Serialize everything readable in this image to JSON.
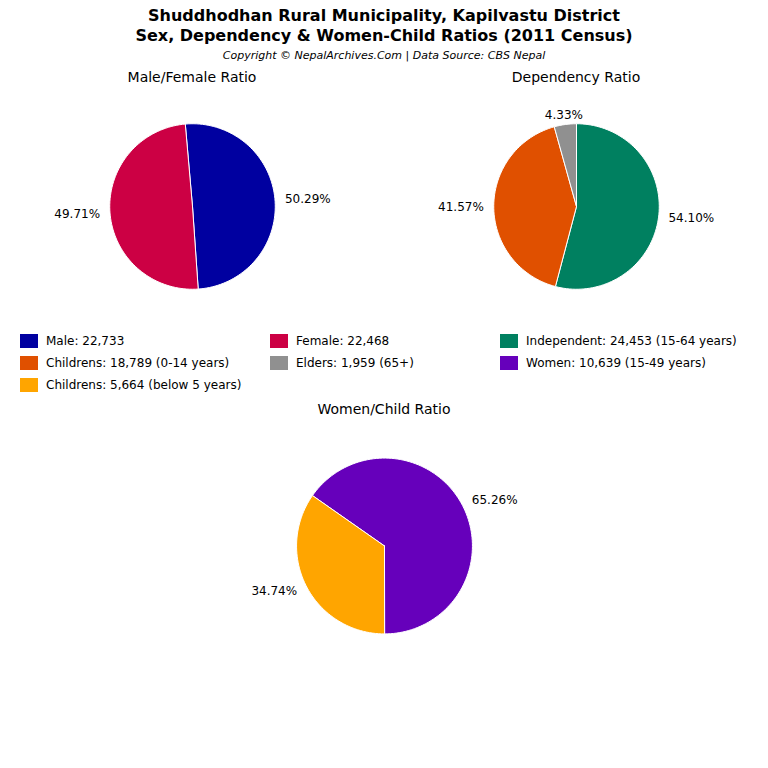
{
  "title": "Shuddhodhan Rural Municipality, Kapilvastu District",
  "subtitle": "Sex, Dependency & Women-Child Ratios (2011 Census)",
  "annotations": [
    "Copyright © NepalArchives.Com | Data Source: CBS Nepal"
  ],
  "chart_data": [
    {
      "type": "pie",
      "title": "Male/Female Ratio",
      "categories": [
        "Male: 22,733",
        "Female: 22,468"
      ],
      "values": [
        50.29,
        49.71
      ],
      "value_labels": [
        "50.29%",
        "49.71%"
      ],
      "colors": [
        "#0000A0",
        "#CC0044"
      ],
      "data_labels": true,
      "legend": "bottom"
    },
    {
      "type": "pie",
      "title": "Dependency Ratio",
      "categories": [
        "Independent: 24,453 (15-64 years)",
        "Childrens: 18,789 (0-14 years)",
        "Elders: 1,959 (65+)"
      ],
      "values": [
        54.1,
        41.57,
        4.33
      ],
      "value_labels": [
        "54.10%",
        "41.57%",
        "4.33%"
      ],
      "colors": [
        "#008060",
        "#E05000",
        "#909090"
      ],
      "data_labels": true,
      "legend": "bottom"
    },
    {
      "type": "pie",
      "title": "Women/Child Ratio",
      "categories": [
        "Women: 10,639 (15-49 years)",
        "Childrens: 5,664 (below 5 years)"
      ],
      "values": [
        65.26,
        34.74
      ],
      "value_labels": [
        "65.26%",
        "34.74%"
      ],
      "colors": [
        "#6600BB",
        "#FFA500"
      ],
      "data_labels": true,
      "legend": "top"
    }
  ]
}
